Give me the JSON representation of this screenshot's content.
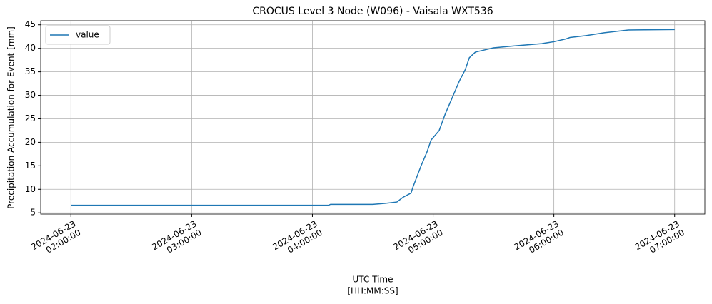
{
  "chart_data": {
    "type": "line",
    "title": "CROCUS Level 3 Node (W096) - Vaisala WXT536",
    "xlabel": [
      "UTC Time",
      "[HH:MM:SS]"
    ],
    "ylabel": "Precipitation Accumulation for Event [mm]",
    "x": [
      "2024-06-23 02:00:00",
      "2024-06-23 04:08:00",
      "2024-06-23 04:09:00",
      "2024-06-23 04:30:00",
      "2024-06-23 04:36:00",
      "2024-06-23 04:42:00",
      "2024-06-23 04:45:00",
      "2024-06-23 04:49:00",
      "2024-06-23 04:50:00",
      "2024-06-23 04:54:00",
      "2024-06-23 04:57:00",
      "2024-06-23 04:59:00",
      "2024-06-23 05:03:00",
      "2024-06-23 05:06:00",
      "2024-06-23 05:10:00",
      "2024-06-23 05:13:00",
      "2024-06-23 05:16:00",
      "2024-06-23 05:18:00",
      "2024-06-23 05:21:00",
      "2024-06-23 05:25:00",
      "2024-06-23 05:30:00",
      "2024-06-23 05:40:00",
      "2024-06-23 05:54:00",
      "2024-06-23 06:00:00",
      "2024-06-23 06:06:00",
      "2024-06-23 06:08:00",
      "2024-06-23 06:16:00",
      "2024-06-23 06:25:00",
      "2024-06-23 06:37:00",
      "2024-06-23 07:00:00"
    ],
    "series": [
      {
        "name": "value",
        "color": "#1f77b4",
        "values": [
          6.6,
          6.6,
          6.8,
          6.8,
          7.0,
          7.3,
          8.3,
          9.2,
          10.5,
          15,
          18,
          20.5,
          22.5,
          26,
          30,
          33,
          35.5,
          38,
          39.2,
          39.6,
          40.1,
          40.5,
          41.0,
          41.4,
          42.0,
          42.3,
          42.7,
          43.3,
          43.9,
          44.0
        ]
      }
    ],
    "xlim": [
      "2024-06-23 01:45:00",
      "2024-06-23 07:15:00"
    ],
    "xticks": [
      {
        "value": "2024-06-23 02:00:00",
        "label": [
          "2024-06-23",
          "02:00:00"
        ]
      },
      {
        "value": "2024-06-23 03:00:00",
        "label": [
          "2024-06-23",
          "03:00:00"
        ]
      },
      {
        "value": "2024-06-23 04:00:00",
        "label": [
          "2024-06-23",
          "04:00:00"
        ]
      },
      {
        "value": "2024-06-23 05:00:00",
        "label": [
          "2024-06-23",
          "05:00:00"
        ]
      },
      {
        "value": "2024-06-23 06:00:00",
        "label": [
          "2024-06-23",
          "06:00:00"
        ]
      },
      {
        "value": "2024-06-23 07:00:00",
        "label": [
          "2024-06-23",
          "07:00:00"
        ]
      }
    ],
    "ylim": [
      4.73,
      45.87
    ],
    "yticks": [
      5,
      10,
      15,
      20,
      25,
      30,
      35,
      40,
      45
    ],
    "grid": true,
    "legend": "upper left"
  }
}
